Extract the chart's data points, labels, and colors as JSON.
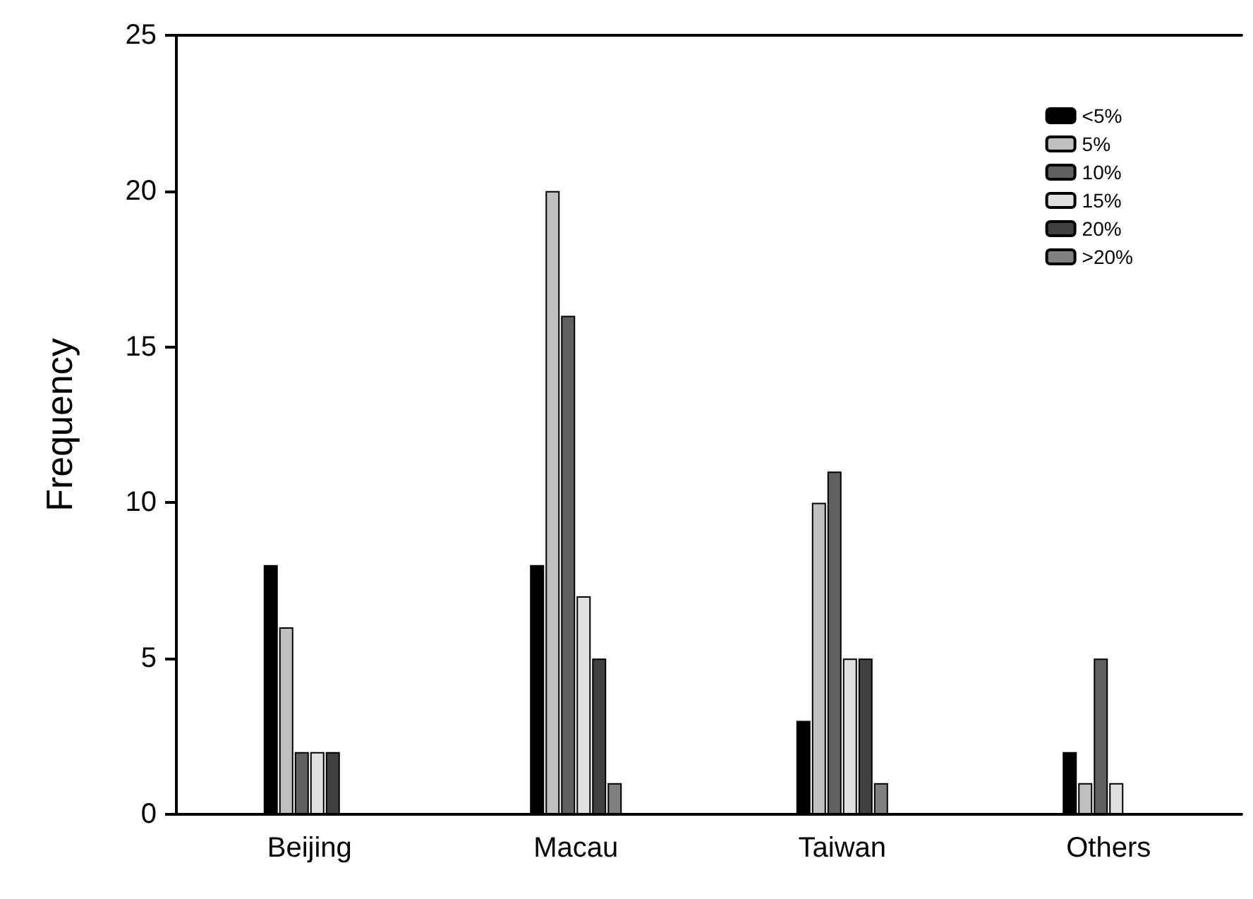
{
  "chart_data": {
    "type": "bar",
    "ylabel": "Frequency",
    "categories": [
      "Beijing",
      "Macau",
      "Taiwan",
      "Others"
    ],
    "series": [
      {
        "name": "<5%",
        "color": "#000000",
        "values": [
          8,
          8,
          3,
          2
        ]
      },
      {
        "name": "5%",
        "color": "#c0c0c0",
        "values": [
          6,
          20,
          10,
          1
        ]
      },
      {
        "name": "10%",
        "color": "#606060",
        "values": [
          2,
          16,
          11,
          5
        ]
      },
      {
        "name": "15%",
        "color": "#e0e0e0",
        "values": [
          2,
          7,
          5,
          1
        ]
      },
      {
        "name": "20%",
        "color": "#404040",
        "values": [
          2,
          5,
          5,
          null
        ]
      },
      {
        "name": ">20%",
        "color": "#808080",
        "values": [
          null,
          1,
          1,
          null
        ]
      }
    ],
    "ylim": [
      0,
      25
    ],
    "yticks": [
      0,
      5,
      10,
      15,
      20,
      25
    ],
    "grid": false,
    "legend": "top right"
  }
}
